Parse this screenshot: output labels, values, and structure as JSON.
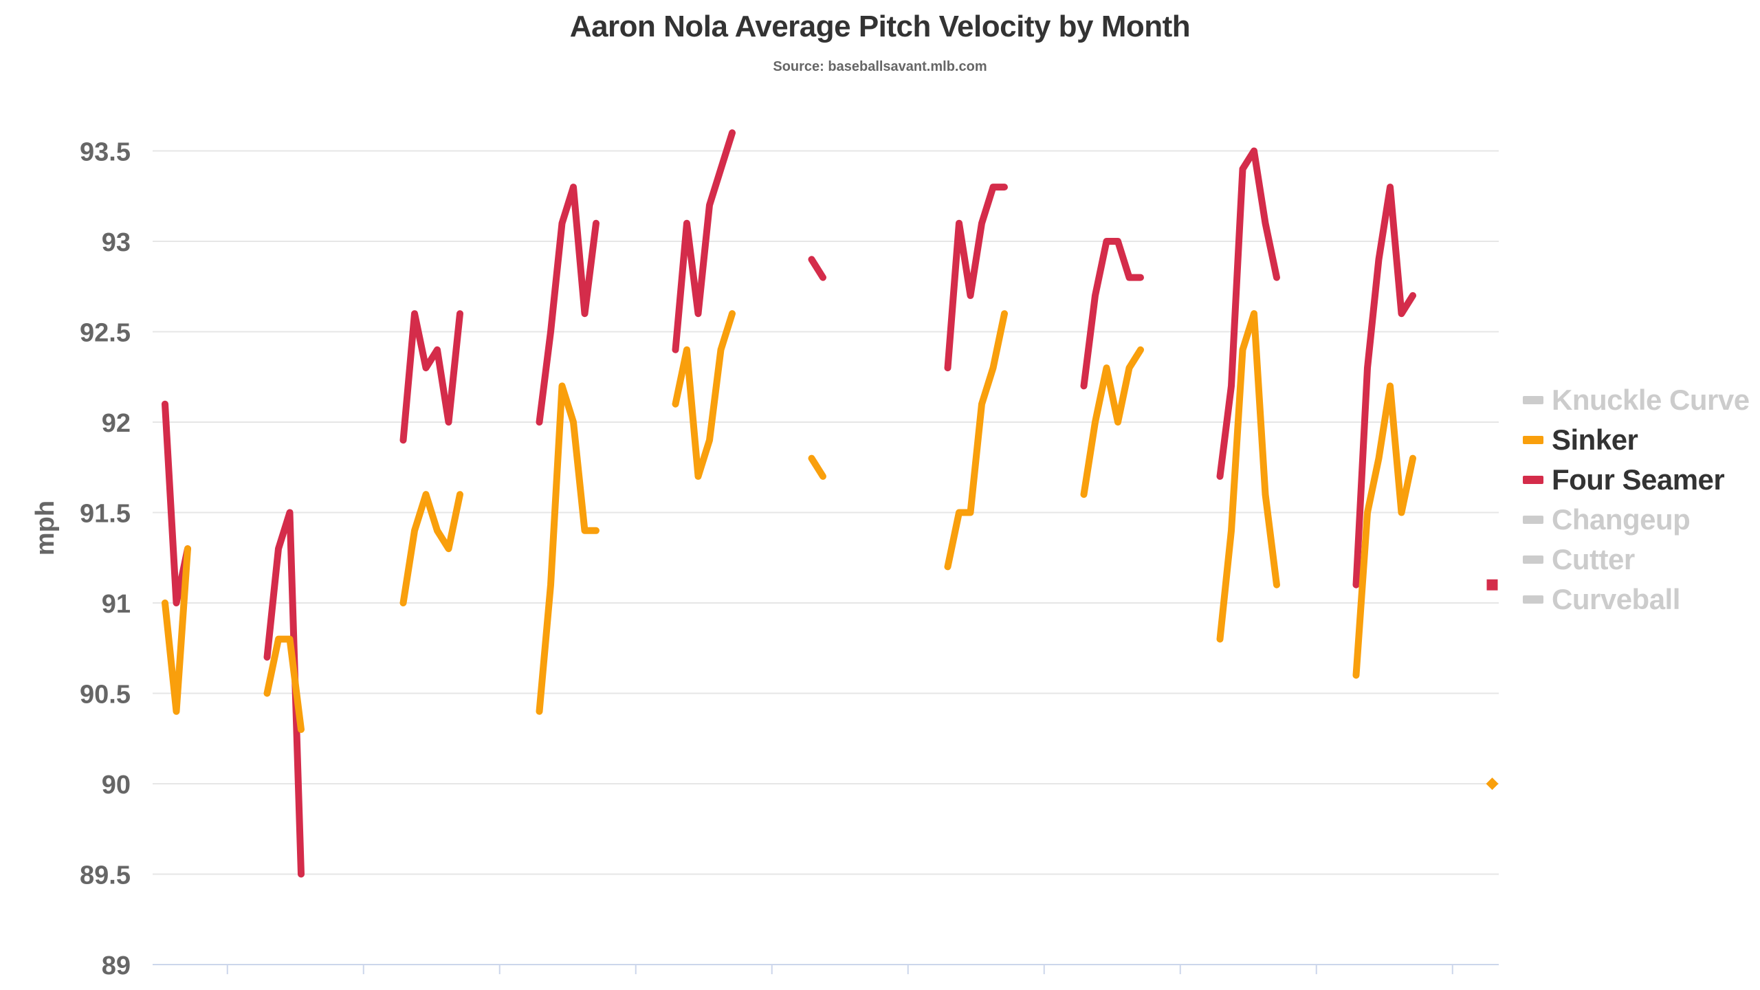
{
  "chart_data": {
    "type": "line",
    "title": "Aaron Nola Average Pitch Velocity by Month",
    "subtitle": "Source: baseballsavant.mlb.com",
    "ylabel": "mph",
    "xlabel": "",
    "ylim": [
      89,
      93.7
    ],
    "yticks": [
      "89",
      "89.5",
      "90",
      "90.5",
      "91",
      "91.5",
      "92",
      "92.5",
      "93",
      "93.5"
    ],
    "ytick_values": [
      89,
      89.5,
      90,
      90.5,
      91,
      91.5,
      92,
      92.5,
      93,
      93.5
    ],
    "grid": true,
    "legend_position": "right",
    "series": [
      {
        "name": "Four Seamer",
        "color": "#d42c4a",
        "visible": true,
        "segments": [
          [
            [
              1,
              92.1
            ],
            [
              2,
              91.0
            ],
            [
              3,
              91.3
            ]
          ],
          [
            [
              10,
              90.7
            ],
            [
              11,
              91.3
            ],
            [
              12,
              91.5
            ],
            [
              13,
              89.5
            ]
          ],
          [
            [
              22,
              91.9
            ],
            [
              23,
              92.6
            ],
            [
              24,
              92.3
            ],
            [
              25,
              92.4
            ],
            [
              26,
              92.0
            ],
            [
              27,
              92.6
            ]
          ],
          [
            [
              34,
              92.0
            ],
            [
              35,
              92.5
            ],
            [
              36,
              93.1
            ],
            [
              37,
              93.3
            ],
            [
              38,
              92.6
            ],
            [
              39,
              93.1
            ]
          ],
          [
            [
              46,
              92.4
            ],
            [
              47,
              93.1
            ],
            [
              48,
              92.6
            ],
            [
              49,
              93.2
            ],
            [
              50,
              93.4
            ],
            [
              51,
              93.6
            ]
          ],
          [
            [
              58,
              92.9
            ],
            [
              59,
              92.8
            ]
          ],
          [
            [
              70,
              92.3
            ],
            [
              71,
              93.1
            ],
            [
              72,
              92.7
            ],
            [
              73,
              93.1
            ],
            [
              74,
              93.3
            ],
            [
              75,
              93.3
            ]
          ],
          [
            [
              82,
              92.2
            ],
            [
              83,
              92.7
            ],
            [
              84,
              93.0
            ],
            [
              85,
              93.0
            ],
            [
              86,
              92.8
            ],
            [
              87,
              92.8
            ]
          ],
          [
            [
              94,
              91.7
            ],
            [
              95,
              92.2
            ],
            [
              96,
              93.4
            ],
            [
              97,
              93.5
            ],
            [
              98,
              93.1
            ],
            [
              99,
              92.8
            ]
          ],
          [
            [
              106,
              91.1
            ],
            [
              107,
              92.3
            ],
            [
              108,
              92.9
            ],
            [
              109,
              93.3
            ],
            [
              110,
              92.6
            ],
            [
              111,
              92.7
            ]
          ],
          [
            [
              118,
              91.1
            ]
          ]
        ]
      },
      {
        "name": "Sinker",
        "color": "#f99f0c",
        "visible": true,
        "segments": [
          [
            [
              1,
              91.0
            ],
            [
              2,
              90.4
            ],
            [
              3,
              91.3
            ]
          ],
          [
            [
              10,
              90.5
            ],
            [
              11,
              90.8
            ],
            [
              12,
              90.8
            ],
            [
              13,
              90.3
            ]
          ],
          [
            [
              22,
              91.0
            ],
            [
              23,
              91.4
            ],
            [
              24,
              91.6
            ],
            [
              25,
              91.4
            ],
            [
              26,
              91.3
            ],
            [
              27,
              91.6
            ]
          ],
          [
            [
              34,
              90.4
            ],
            [
              35,
              91.1
            ],
            [
              36,
              92.2
            ],
            [
              37,
              92.0
            ],
            [
              38,
              91.4
            ],
            [
              39,
              91.4
            ]
          ],
          [
            [
              46,
              92.1
            ],
            [
              47,
              92.4
            ],
            [
              48,
              91.7
            ],
            [
              49,
              91.9
            ],
            [
              50,
              92.4
            ],
            [
              51,
              92.6
            ]
          ],
          [
            [
              58,
              91.8
            ],
            [
              59,
              91.7
            ]
          ],
          [
            [
              70,
              91.2
            ],
            [
              71,
              91.5
            ],
            [
              72,
              91.5
            ],
            [
              73,
              92.1
            ],
            [
              74,
              92.3
            ],
            [
              75,
              92.6
            ]
          ],
          [
            [
              82,
              91.6
            ],
            [
              83,
              92.0
            ],
            [
              84,
              92.3
            ],
            [
              85,
              92.0
            ],
            [
              86,
              92.3
            ],
            [
              87,
              92.4
            ]
          ],
          [
            [
              94,
              90.8
            ],
            [
              95,
              91.4
            ],
            [
              96,
              92.4
            ],
            [
              97,
              92.6
            ],
            [
              98,
              91.6
            ],
            [
              99,
              91.1
            ]
          ],
          [
            [
              106,
              90.6
            ],
            [
              107,
              91.5
            ],
            [
              108,
              91.8
            ],
            [
              109,
              92.2
            ],
            [
              110,
              91.5
            ],
            [
              111,
              91.8
            ]
          ],
          [
            [
              118,
              90.0
            ]
          ]
        ]
      },
      {
        "name": "Knuckle Curve",
        "color": "#cccccc",
        "visible": false,
        "segments": []
      },
      {
        "name": "Changeup",
        "color": "#cccccc",
        "visible": false,
        "segments": []
      },
      {
        "name": "Cutter",
        "color": "#cccccc",
        "visible": false,
        "segments": []
      },
      {
        "name": "Curveball",
        "color": "#cccccc",
        "visible": false,
        "segments": []
      }
    ],
    "legend_order": [
      "Knuckle Curve",
      "Sinker",
      "Four Seamer",
      "Changeup",
      "Cutter",
      "Curveball"
    ]
  },
  "legend_colors": {
    "active_text": "#333333",
    "hidden_text": "#cccccc"
  }
}
